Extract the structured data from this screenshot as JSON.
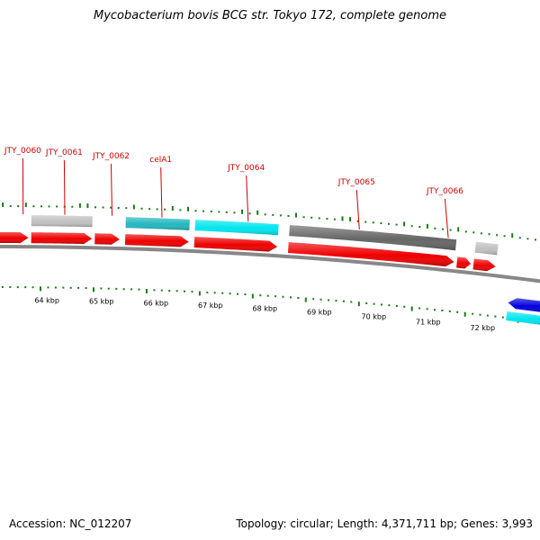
{
  "title": "Mycobacterium bovis BCG str. Tokyo 172, complete genome",
  "footer": {
    "accession": "Accession: NC_012207",
    "topology": "Topology: circular; Length: 4,371,711 bp; Genes: 3,993"
  },
  "colors": {
    "forward_cds": "#ee0000",
    "gene_label": "#cc0000",
    "light_gray_feature": "#c0c0c0",
    "dark_gray_feature": "#666666",
    "teal_feature": "#22b8c0",
    "cyan_feature": "#00e5ee",
    "blue_feature": "#0000dd",
    "backbone": "#888888",
    "gc_ticks": "#1a7a1a"
  },
  "gene_labels": [
    {
      "text": "JTY_0060",
      "kb": 63.55
    },
    {
      "text": "JTY_0061",
      "kb": 64.3
    },
    {
      "text": "JTY_0062",
      "kb": 65.15
    },
    {
      "text": "celA1",
      "kb": 66.05
    },
    {
      "text": "JTY_0064",
      "kb": 67.6
    },
    {
      "text": "JTY_0065",
      "kb": 69.6
    },
    {
      "text": "JTY_0066",
      "kb": 71.2
    }
  ],
  "scale_ticks": [
    "64 kbp",
    "65 kbp",
    "66 kbp",
    "67 kbp",
    "68 kbp",
    "69 kbp",
    "70 kbp",
    "71 kbp",
    "72 kbp"
  ],
  "features": [
    {
      "track": "cds",
      "start": 62.9,
      "end": 63.65,
      "color": "#ee0000",
      "arrow": true
    },
    {
      "track": "cds",
      "start": 63.7,
      "end": 64.8,
      "color": "#ee0000",
      "arrow": true
    },
    {
      "track": "cds",
      "start": 64.85,
      "end": 65.3,
      "color": "#ee0000",
      "arrow": true
    },
    {
      "track": "cds",
      "start": 65.4,
      "end": 66.55,
      "color": "#ee0000",
      "arrow": true
    },
    {
      "track": "cds",
      "start": 66.65,
      "end": 68.15,
      "color": "#ee0000",
      "arrow": true
    },
    {
      "track": "cds",
      "start": 68.35,
      "end": 71.35,
      "color": "#ee0000",
      "arrow": true
    },
    {
      "track": "cds",
      "start": 71.4,
      "end": 71.65,
      "color": "#ee0000",
      "arrow": true
    },
    {
      "track": "cds",
      "start": 71.7,
      "end": 72.1,
      "color": "#ee0000",
      "arrow": true
    },
    {
      "track": "upper",
      "start": 63.7,
      "end": 64.8,
      "color": "#c0c0c0",
      "arrow": false
    },
    {
      "track": "upper",
      "start": 65.4,
      "end": 66.55,
      "color": "#22b8c0",
      "arrow": false
    },
    {
      "track": "upper",
      "start": 66.65,
      "end": 68.15,
      "color": "#00e5ee",
      "arrow": false
    },
    {
      "track": "upper",
      "start": 68.35,
      "end": 71.35,
      "color": "#666666",
      "arrow": false
    },
    {
      "track": "upper",
      "start": 71.7,
      "end": 72.1,
      "color": "#c0c0c0",
      "arrow": false
    },
    {
      "track": "reverse",
      "start": 72.4,
      "end": 73.2,
      "color": "#0000dd",
      "arrow": true
    },
    {
      "track": "lower",
      "start": 72.4,
      "end": 73.2,
      "color": "#00e5ee",
      "arrow": false
    }
  ]
}
